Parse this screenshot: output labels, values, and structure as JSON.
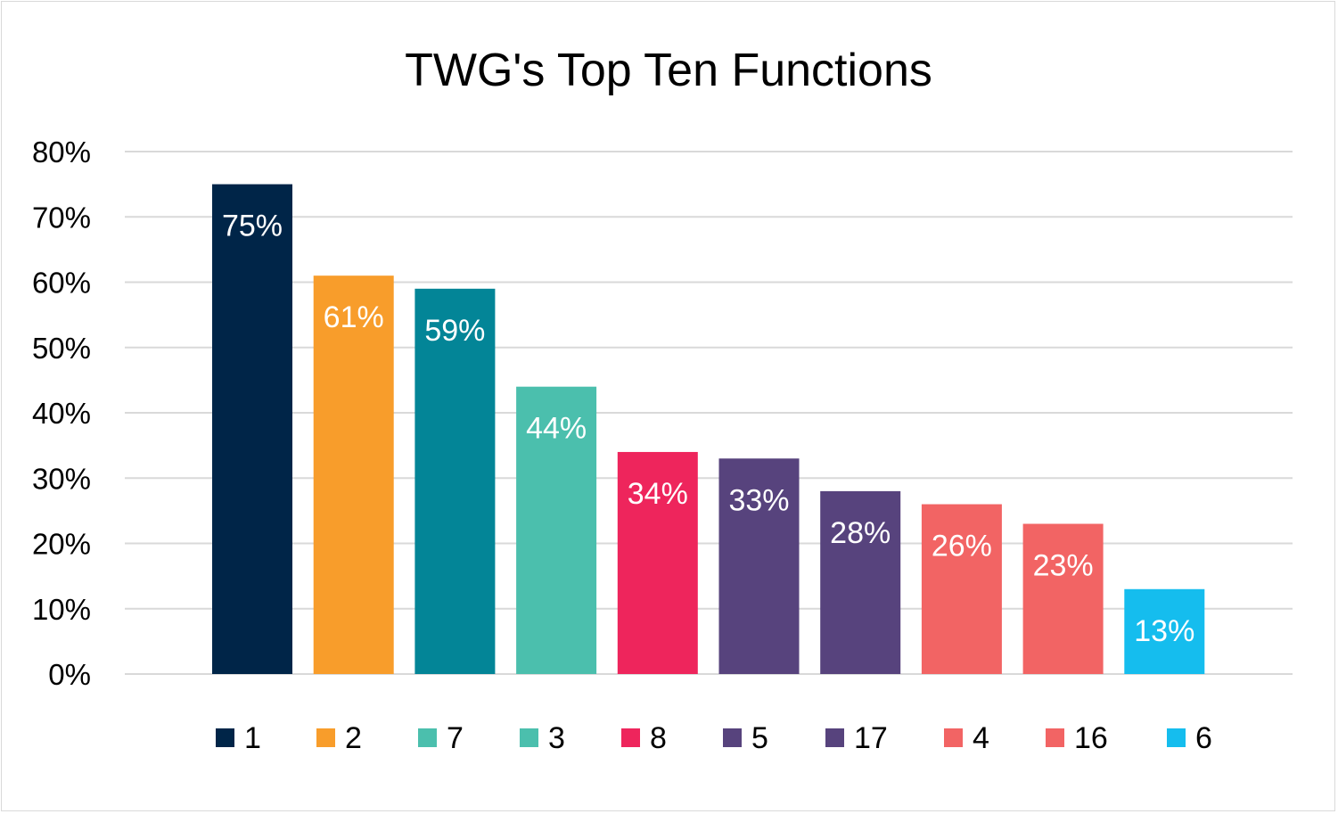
{
  "chart_data": {
    "type": "bar",
    "title": "TWG's Top Ten Functions",
    "xlabel": "",
    "ylabel": "",
    "ylim": [
      0,
      80
    ],
    "yticks": [
      "0%",
      "10%",
      "20%",
      "30%",
      "40%",
      "50%",
      "60%",
      "70%",
      "80%"
    ],
    "grid": true,
    "legend_position": "bottom",
    "categories": [
      "1",
      "2",
      "7",
      "3",
      "8",
      "5",
      "17",
      "4",
      "16",
      "6"
    ],
    "values": [
      75,
      61,
      59,
      44,
      34,
      33,
      28,
      26,
      23,
      13
    ],
    "data_labels": [
      "75%",
      "61%",
      "59%",
      "44%",
      "34%",
      "33%",
      "28%",
      "26%",
      "23%",
      "13%"
    ],
    "bar_colors": [
      "#002548",
      "#F89D2B",
      "#038597",
      "#4BBFAD",
      "#EE255C",
      "#57437D",
      "#57437D",
      "#F26464",
      "#F26464",
      "#15BDEE"
    ],
    "legend_colors": [
      "#002548",
      "#F89D2B",
      "#4BBFAD",
      "#4BBFAD",
      "#EE255C",
      "#57437D",
      "#57437D",
      "#F26464",
      "#F26464",
      "#15BDEE"
    ]
  }
}
